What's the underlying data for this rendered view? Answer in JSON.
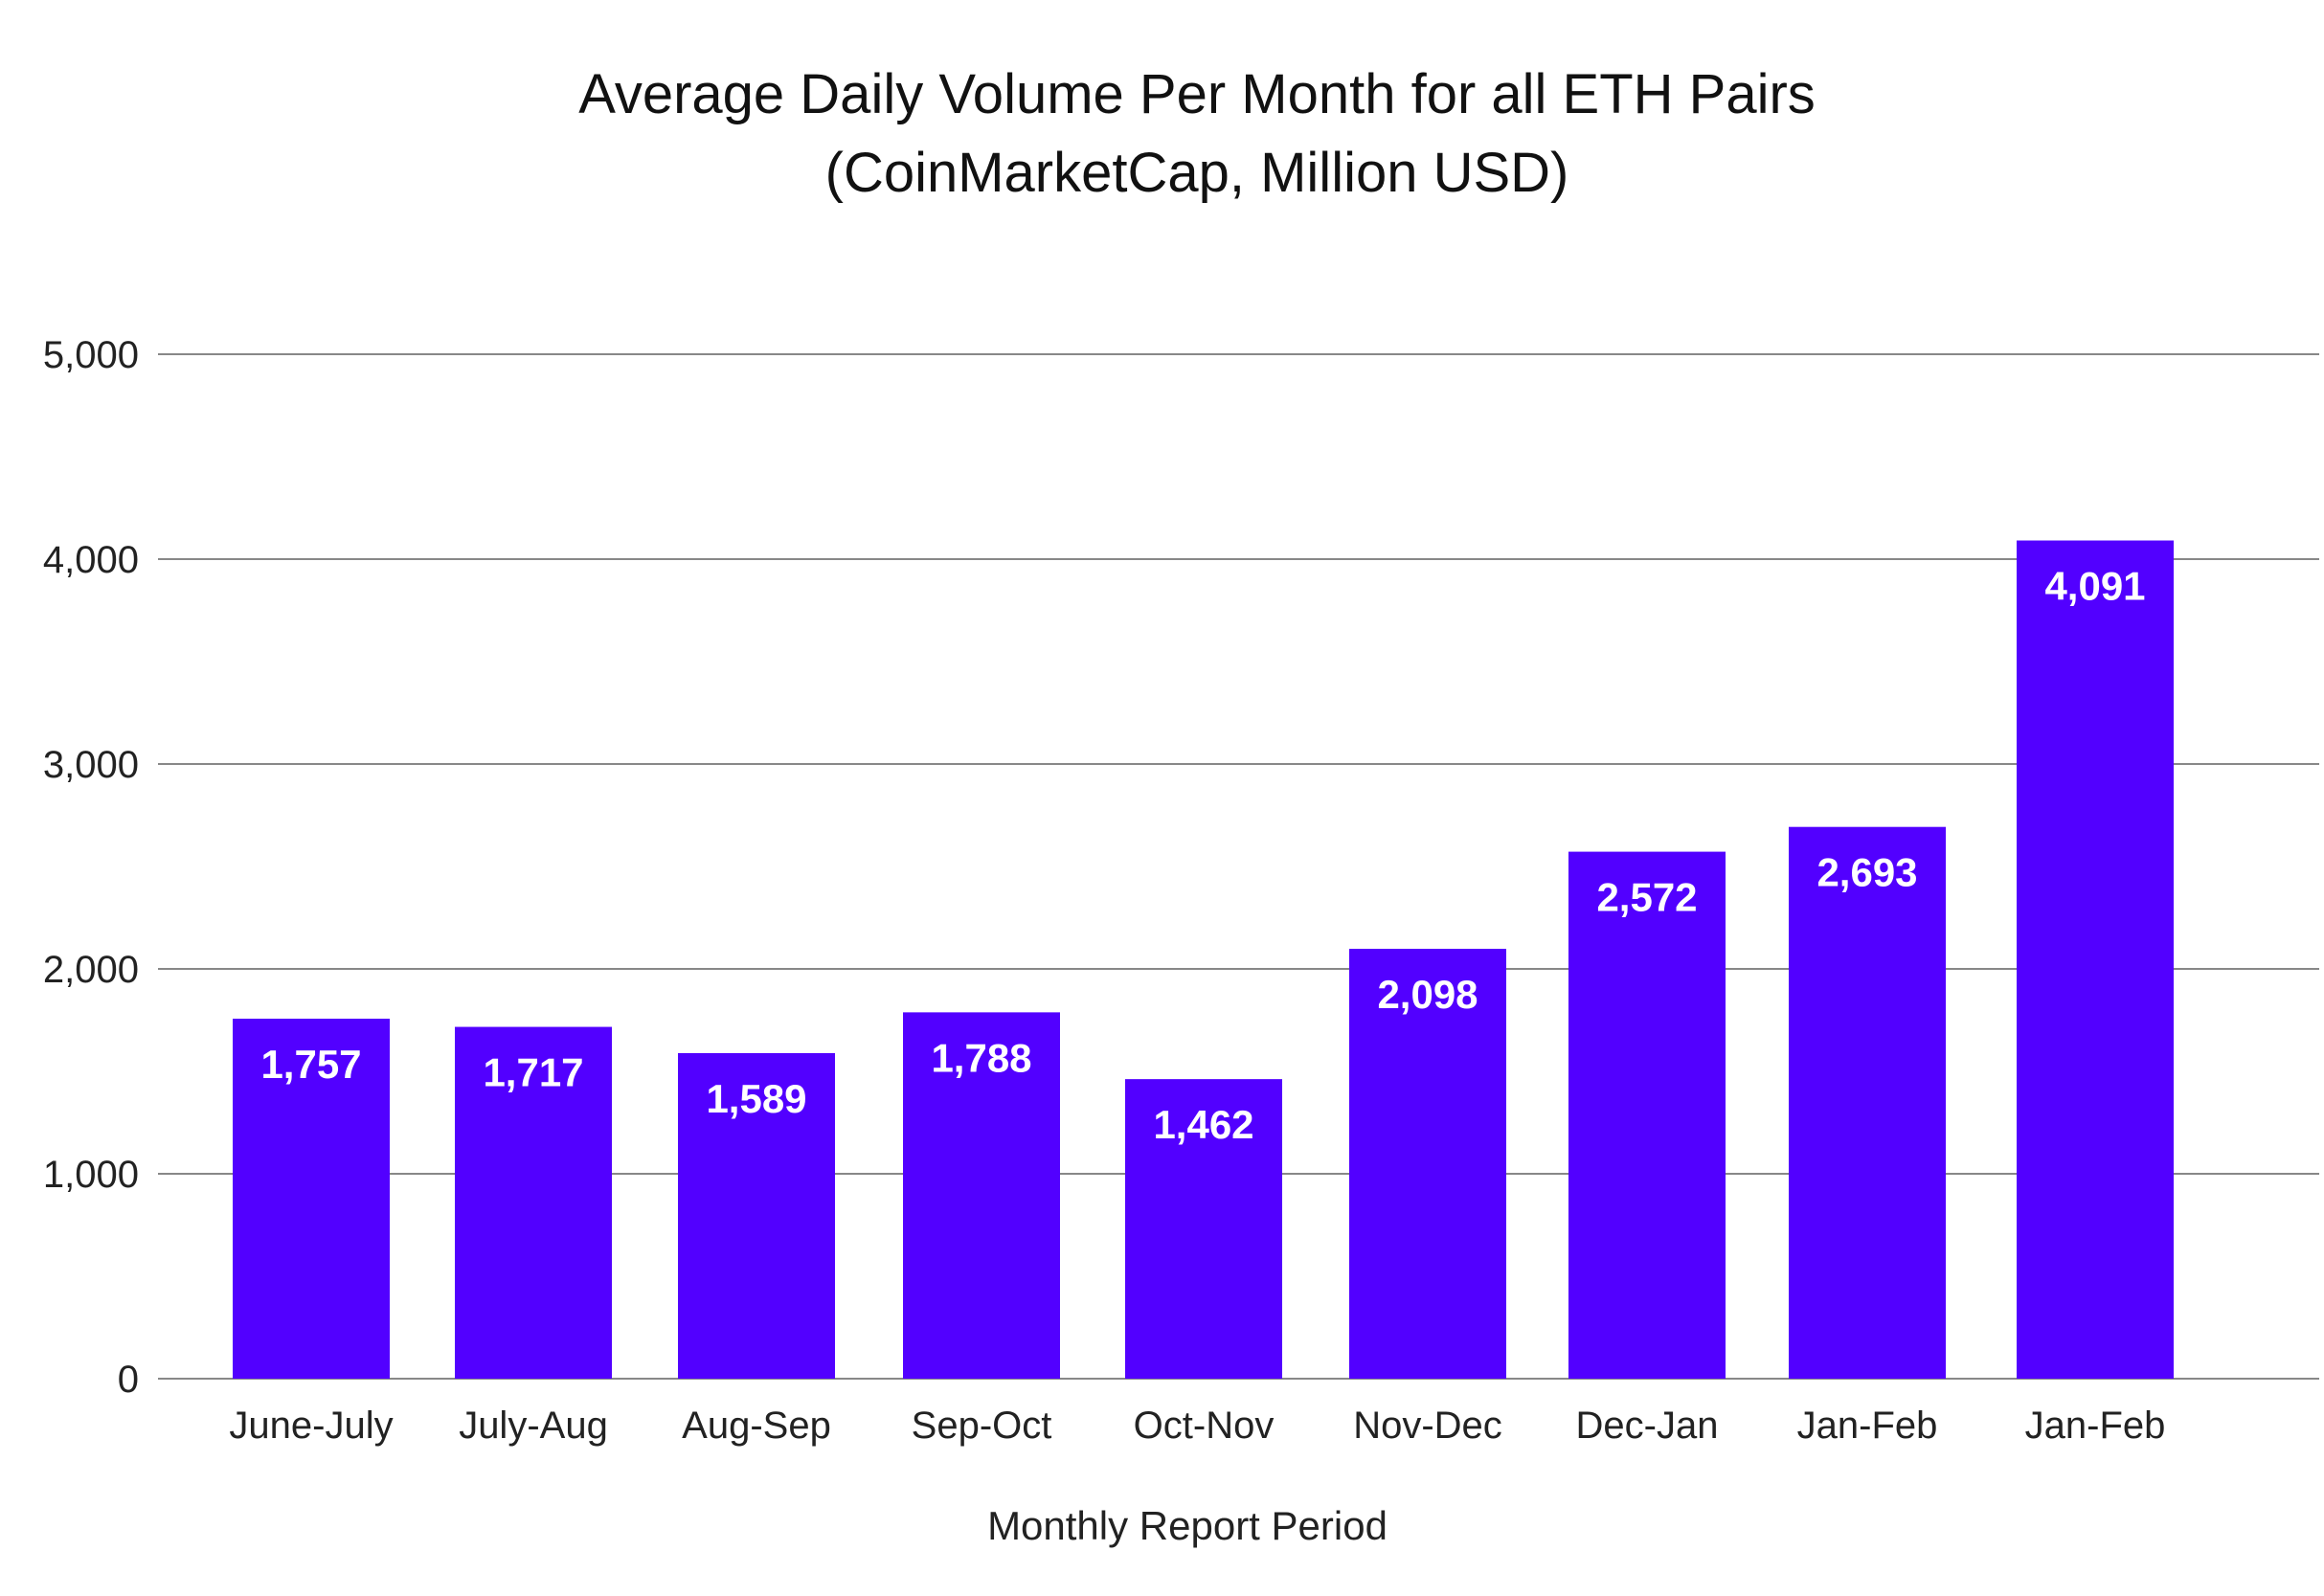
{
  "chart_data": {
    "type": "bar",
    "title": "Average Daily Volume Per Month for all ETH Pairs",
    "subtitle": "(CoinMarketCap, Million USD)",
    "xlabel": "Monthly Report Period",
    "ylabel": "",
    "categories": [
      "June-July",
      "July-Aug",
      "Aug-Sep",
      "Sep-Oct",
      "Oct-Nov",
      "Nov-Dec",
      "Dec-Jan",
      "Jan-Feb",
      "Jan-Feb"
    ],
    "values": [
      1757,
      1717,
      1589,
      1788,
      1462,
      2098,
      2572,
      2693,
      4091
    ],
    "data_labels": [
      "1,757",
      "1,717",
      "1,589",
      "1,788",
      "1,462",
      "2,098",
      "2,572",
      "2,693",
      "4,091"
    ],
    "ylim": [
      0,
      5000
    ],
    "yticks": [
      0,
      1000,
      2000,
      3000,
      4000,
      5000
    ],
    "ytick_labels": [
      "0",
      "1,000",
      "2,000",
      "3,000",
      "4,000",
      "5,000"
    ],
    "grid": true,
    "legend": "none",
    "bar_color": "#5200ff",
    "grid_color": "#888888",
    "data_label_color": "#ffffff"
  }
}
